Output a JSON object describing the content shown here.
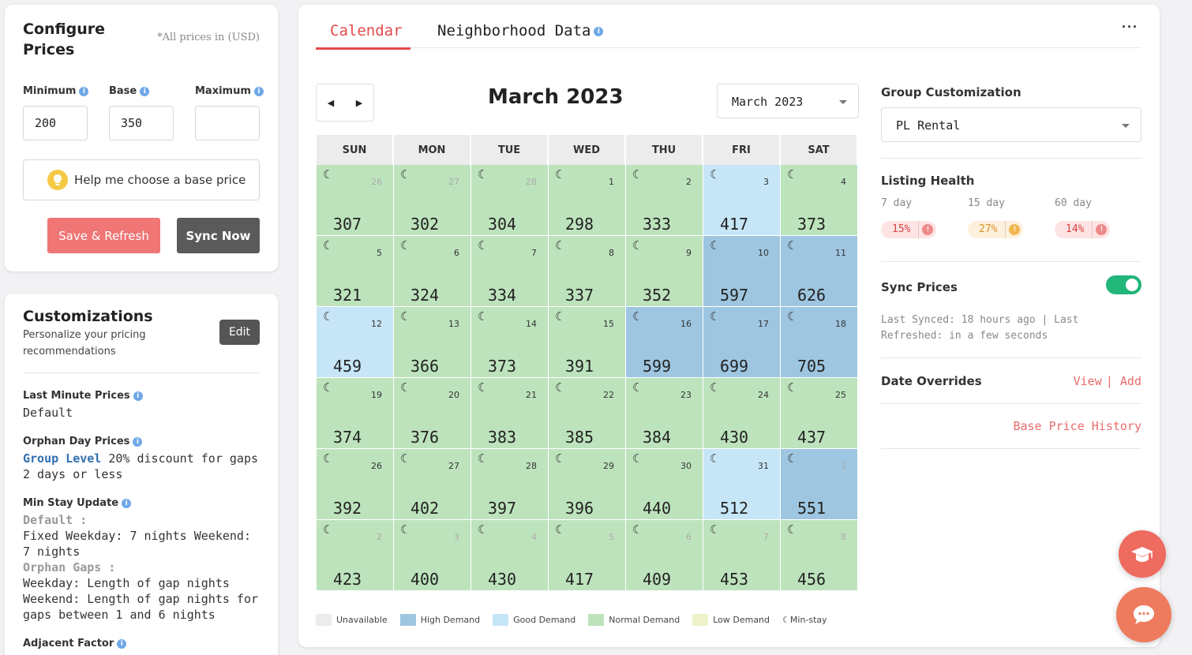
{
  "configure": {
    "title": "Configure Prices",
    "note": "*All prices in (USD)",
    "min_label": "Minimum",
    "base_label": "Base",
    "max_label": "Maximum",
    "min_value": "200",
    "base_value": "350",
    "max_value": "",
    "help_label": "Help me choose a base price",
    "save_label": "Save & Refresh",
    "sync_label": "Sync Now"
  },
  "customizations": {
    "title": "Customizations",
    "subtitle": "Personalize your pricing recommendations",
    "edit_label": "Edit",
    "last_minute_label": "Last Minute Prices",
    "last_minute_value": "Default",
    "orphan_label": "Orphan Day Prices",
    "orphan_level": "Group Level",
    "orphan_value": " 20% discount for gaps 2 days or less",
    "min_stay_label": "Min Stay Update",
    "min_stay_default": "Default :",
    "min_stay_default_value": "Fixed Weekday: 7 nights Weekend: 7 nights",
    "min_stay_orphan": "Orphan Gaps :",
    "min_stay_orphan_value": "Weekday: Length of gap nights Weekend: Length of gap nights for gaps between 1 and 6 nights",
    "adjacent_label": "Adjacent Factor"
  },
  "tabs": {
    "calendar": "Calendar",
    "neighborhood": "Neighborhood Data",
    "more": "···"
  },
  "calendar": {
    "title": "March 2023",
    "select_value": "March 2023",
    "weekdays": [
      "SUN",
      "MON",
      "TUE",
      "WED",
      "THU",
      "FRI",
      "SAT"
    ],
    "cells": [
      {
        "day": "26",
        "price": "307",
        "demand": "normal",
        "other": true
      },
      {
        "day": "27",
        "price": "302",
        "demand": "normal",
        "other": true
      },
      {
        "day": "28",
        "price": "304",
        "demand": "normal",
        "other": true
      },
      {
        "day": "1",
        "price": "298",
        "demand": "normal",
        "other": false
      },
      {
        "day": "2",
        "price": "333",
        "demand": "normal",
        "other": false
      },
      {
        "day": "3",
        "price": "417",
        "demand": "good",
        "other": false
      },
      {
        "day": "4",
        "price": "373",
        "demand": "normal",
        "other": false
      },
      {
        "day": "5",
        "price": "321",
        "demand": "normal",
        "other": false
      },
      {
        "day": "6",
        "price": "324",
        "demand": "normal",
        "other": false
      },
      {
        "day": "7",
        "price": "334",
        "demand": "normal",
        "other": false
      },
      {
        "day": "8",
        "price": "337",
        "demand": "normal",
        "other": false
      },
      {
        "day": "9",
        "price": "352",
        "demand": "normal",
        "other": false
      },
      {
        "day": "10",
        "price": "597",
        "demand": "high",
        "other": false
      },
      {
        "day": "11",
        "price": "626",
        "demand": "high",
        "other": false
      },
      {
        "day": "12",
        "price": "459",
        "demand": "good",
        "other": false
      },
      {
        "day": "13",
        "price": "366",
        "demand": "normal",
        "other": false
      },
      {
        "day": "14",
        "price": "373",
        "demand": "normal",
        "other": false
      },
      {
        "day": "15",
        "price": "391",
        "demand": "normal",
        "other": false
      },
      {
        "day": "16",
        "price": "599",
        "demand": "high",
        "other": false
      },
      {
        "day": "17",
        "price": "699",
        "demand": "high",
        "other": false
      },
      {
        "day": "18",
        "price": "705",
        "demand": "high",
        "other": false
      },
      {
        "day": "19",
        "price": "374",
        "demand": "normal",
        "other": false
      },
      {
        "day": "20",
        "price": "376",
        "demand": "normal",
        "other": false
      },
      {
        "day": "21",
        "price": "383",
        "demand": "normal",
        "other": false
      },
      {
        "day": "22",
        "price": "385",
        "demand": "normal",
        "other": false
      },
      {
        "day": "23",
        "price": "384",
        "demand": "normal",
        "other": false
      },
      {
        "day": "24",
        "price": "430",
        "demand": "normal",
        "other": false
      },
      {
        "day": "25",
        "price": "437",
        "demand": "normal",
        "other": false
      },
      {
        "day": "26",
        "price": "392",
        "demand": "normal",
        "other": false
      },
      {
        "day": "27",
        "price": "402",
        "demand": "normal",
        "other": false
      },
      {
        "day": "28",
        "price": "397",
        "demand": "normal",
        "other": false
      },
      {
        "day": "29",
        "price": "396",
        "demand": "normal",
        "other": false
      },
      {
        "day": "30",
        "price": "440",
        "demand": "normal",
        "other": false
      },
      {
        "day": "31",
        "price": "512",
        "demand": "good",
        "other": false
      },
      {
        "day": "1",
        "price": "551",
        "demand": "high",
        "other": true
      },
      {
        "day": "2",
        "price": "423",
        "demand": "normal",
        "other": true
      },
      {
        "day": "3",
        "price": "400",
        "demand": "normal",
        "other": true
      },
      {
        "day": "4",
        "price": "430",
        "demand": "normal",
        "other": true
      },
      {
        "day": "5",
        "price": "417",
        "demand": "normal",
        "other": true
      },
      {
        "day": "6",
        "price": "409",
        "demand": "normal",
        "other": true
      },
      {
        "day": "7",
        "price": "453",
        "demand": "normal",
        "other": true
      },
      {
        "day": "8",
        "price": "456",
        "demand": "normal",
        "other": true
      }
    ]
  },
  "legend": [
    {
      "label": "Unavailable",
      "color": "#ececec"
    },
    {
      "label": "High Demand",
      "color": "#9fc6e0"
    },
    {
      "label": "Good Demand",
      "color": "#c6e6f7"
    },
    {
      "label": "Normal Demand",
      "color": "#bde3bd"
    },
    {
      "label": "Low Demand",
      "color": "#eef2c9"
    }
  ],
  "legend_minstay": "Min-stay",
  "sidebar_right": {
    "group_label": "Group Customization",
    "group_value": "PL Rental",
    "health_label": "Listing Health",
    "health": [
      {
        "label": "7 day",
        "value": "15%",
        "tone": "red"
      },
      {
        "label": "15 day",
        "value": "27%",
        "tone": "amber"
      },
      {
        "label": "60 day",
        "value": "14%",
        "tone": "red"
      }
    ],
    "sync_label": "Sync Prices",
    "sync_info": "Last Synced: 18 hours ago | Last Refreshed: in a few seconds",
    "overrides_label": "Date Overrides",
    "view_label": "View",
    "add_label": "Add",
    "history_label": "Base Price History"
  },
  "colors": {
    "accent": "#e44a4a",
    "normal": "#bde3bd",
    "good": "#c6e6f7",
    "high": "#9fc6e0",
    "toggle": "#21b67a"
  }
}
